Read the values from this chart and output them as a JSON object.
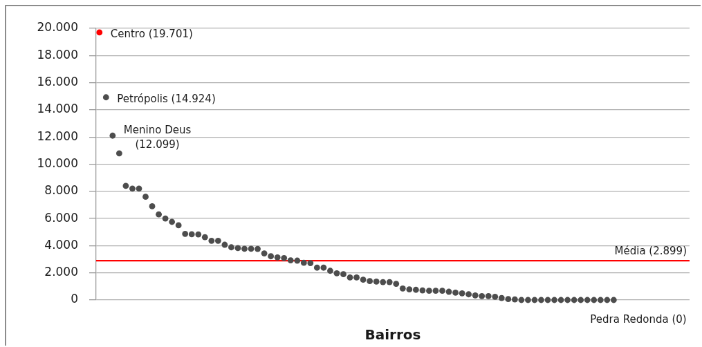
{
  "chart_data": {
    "type": "scatter",
    "xlabel": "Bairros",
    "categories": [
      null,
      null,
      null,
      null,
      null,
      null,
      null,
      null,
      null,
      null,
      null,
      null,
      null,
      null,
      null,
      null,
      null,
      null,
      null,
      null,
      null,
      null,
      null,
      null,
      null,
      null,
      null,
      null,
      null,
      null,
      null,
      null,
      null,
      null,
      null,
      null,
      null,
      null,
      null,
      null,
      null,
      null,
      null,
      null,
      null,
      null,
      null,
      null,
      null,
      null,
      null,
      null,
      null,
      null,
      null,
      null,
      null,
      null,
      null,
      null,
      null,
      null,
      null,
      null,
      null,
      null,
      null,
      null,
      null,
      null,
      null,
      null,
      null,
      null,
      null,
      null,
      null,
      null,
      null,
      null,
      null,
      null,
      null,
      null,
      null,
      null,
      null,
      null,
      null,
      null
    ],
    "values": [
      19701,
      14924,
      12099,
      10800,
      8400,
      8200,
      8200,
      7600,
      6900,
      6300,
      6000,
      5750,
      5500,
      4870,
      4840,
      4830,
      4620,
      4360,
      4360,
      4070,
      3880,
      3820,
      3770,
      3770,
      3760,
      3430,
      3220,
      3140,
      3090,
      2920,
      2900,
      2740,
      2720,
      2380,
      2380,
      2150,
      1970,
      1900,
      1660,
      1660,
      1490,
      1390,
      1360,
      1320,
      1320,
      1190,
      850,
      780,
      750,
      710,
      680,
      680,
      680,
      610,
      540,
      490,
      420,
      340,
      290,
      290,
      240,
      150,
      70,
      40,
      0,
      0,
      0,
      0,
      0,
      0,
      0,
      0,
      0,
      0,
      0,
      0,
      0,
      0,
      0,
      null,
      null,
      null,
      null,
      null,
      null,
      null,
      null,
      null,
      null,
      null
    ],
    "colors": [
      "#ff0000",
      "#4d4d4d",
      "#4d4d4d",
      "#4d4d4d",
      "#4d4d4d",
      "#4d4d4d",
      "#4d4d4d",
      "#4d4d4d",
      "#4d4d4d",
      "#4d4d4d",
      "#4d4d4d",
      "#4d4d4d",
      "#4d4d4d",
      "#4d4d4d",
      "#4d4d4d",
      "#4d4d4d",
      "#4d4d4d",
      "#4d4d4d",
      "#4d4d4d",
      "#4d4d4d",
      "#4d4d4d",
      "#4d4d4d",
      "#4d4d4d",
      "#4d4d4d",
      "#4d4d4d",
      "#4d4d4d",
      "#4d4d4d",
      "#4d4d4d",
      "#4d4d4d",
      "#4d4d4d",
      "#4d4d4d",
      "#4d4d4d",
      "#4d4d4d",
      "#4d4d4d",
      "#4d4d4d",
      "#4d4d4d",
      "#4d4d4d",
      "#4d4d4d",
      "#4d4d4d",
      "#4d4d4d",
      "#4d4d4d",
      "#4d4d4d",
      "#4d4d4d",
      "#4d4d4d",
      "#4d4d4d",
      "#4d4d4d",
      "#4d4d4d",
      "#4d4d4d",
      "#4d4d4d",
      "#4d4d4d",
      "#4d4d4d",
      "#4d4d4d",
      "#4d4d4d",
      "#4d4d4d",
      "#4d4d4d",
      "#4d4d4d",
      "#4d4d4d",
      "#4d4d4d",
      "#4d4d4d",
      "#4d4d4d",
      "#4d4d4d",
      "#4d4d4d",
      "#4d4d4d",
      "#4d4d4d",
      "#4d4d4d",
      "#4d4d4d",
      "#4d4d4d",
      "#4d4d4d",
      "#4d4d4d",
      "#4d4d4d",
      "#4d4d4d",
      "#4d4d4d",
      "#4d4d4d",
      "#4d4d4d",
      "#4d4d4d",
      "#4d4d4d",
      "#4d4d4d",
      "#4d4d4d",
      "#4d4d4d",
      "#4d4d4d",
      "#4d4d4d",
      "#4d4d4d",
      "#4d4d4d",
      "#4d4d4d",
      "#4d4d4d",
      "#4d4d4d",
      "#4d4d4d",
      "#4d4d4d",
      "#4d4d4d",
      "#4d4d4d"
    ],
    "value_labels": [
      "Centro (19.701)",
      "Petrópolis (14.924)",
      "Menino Deus\n(12.099)",
      null,
      null,
      null,
      null,
      null,
      null,
      null,
      null,
      null,
      null,
      null,
      null,
      null,
      null,
      null,
      null,
      null,
      null,
      null,
      null,
      null,
      null,
      null,
      null,
      null,
      null,
      null,
      null,
      null,
      null,
      null,
      null,
      null,
      null,
      null,
      null,
      null,
      null,
      null,
      null,
      null,
      null,
      null,
      null,
      null,
      null,
      null,
      null,
      null,
      null,
      null,
      null,
      null,
      null,
      null,
      null,
      null,
      null,
      null,
      null,
      null,
      null,
      null,
      null,
      null,
      null,
      null,
      null,
      null,
      null,
      null,
      null,
      null,
      null,
      null,
      "Pedra Redonda (0)",
      null,
      null,
      null,
      null,
      null,
      null,
      null,
      null,
      null,
      null,
      null
    ],
    "ylim": [
      0,
      20000
    ],
    "yticks": [
      0,
      {
        "value": 2000,
        "label": "2.000"
      },
      {
        "value": 4000,
        "label": "4.000"
      },
      {
        "value": 6000,
        "label": "6.000"
      },
      {
        "value": 8000,
        "label": "8.000"
      },
      {
        "value": 10000,
        "label": "10.000"
      },
      {
        "value": 12000,
        "label": "12.000"
      },
      {
        "value": 14000,
        "label": "14.000"
      },
      {
        "value": 16000,
        "label": "16.000"
      },
      {
        "value": 18000,
        "label": "18.000"
      },
      {
        "value": 20000,
        "label": "20.000"
      }
    ],
    "ref_lines": [
      {
        "axis": "y",
        "value": 2899,
        "label": "Média (2.899)",
        "color": "#ff0000"
      }
    ],
    "grid": "y",
    "marker": "circle"
  }
}
